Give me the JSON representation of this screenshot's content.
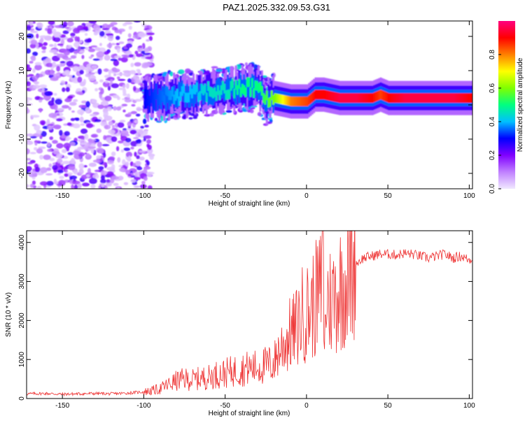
{
  "figure_title": "PAZ1.2025.332.09.53.G31",
  "chart_data": [
    {
      "type": "heatmap",
      "title": "PAZ1.2025.332.09.53.G31",
      "xlabel": "Height of straight line (km)",
      "ylabel": "Frequency (Hz)",
      "xlim": [
        -172,
        102
      ],
      "ylim": [
        -24.5,
        24.5
      ],
      "xticks": [
        -150,
        -100,
        -50,
        0,
        50,
        100
      ],
      "yticks": [
        -20,
        -10,
        0,
        10,
        20
      ],
      "colorbar": {
        "label": "Normalized spectral amplitude",
        "range": [
          0,
          1
        ],
        "ticks": [
          "0.0",
          "0.2",
          "0.4",
          "0.6",
          "0.8"
        ],
        "tick_values": [
          0,
          0.2,
          0.4,
          0.6,
          0.8
        ],
        "colors": [
          "#f0e8ff",
          "#c080ff",
          "#8000ff",
          "#0000ff",
          "#00c0ff",
          "#00ff80",
          "#80ff00",
          "#ffff00",
          "#ff8000",
          "#ff0000",
          "#ff0080"
        ]
      },
      "ridge_frequency": {
        "height_km": [
          -100,
          -90,
          -80,
          -70,
          -60,
          -50,
          -40,
          -30,
          -25,
          -20,
          -10,
          0,
          5,
          10,
          20,
          30,
          40,
          45,
          50,
          60,
          70,
          80,
          90,
          100
        ],
        "frequency_hz": [
          2,
          2,
          3,
          3,
          4,
          4,
          5,
          5,
          1,
          2,
          1,
          1,
          3,
          3,
          2,
          2,
          2,
          3,
          2,
          2,
          2,
          2,
          2,
          2
        ],
        "amplitude": [
          0.3,
          0.35,
          0.4,
          0.4,
          0.45,
          0.45,
          0.5,
          0.5,
          0.55,
          0.6,
          0.8,
          0.85,
          0.9,
          0.9,
          0.95,
          0.95,
          0.9,
          0.85,
          0.9,
          0.95,
          0.95,
          0.95,
          0.95,
          0.9
        ]
      }
    },
    {
      "type": "line",
      "xlabel": "Height of straight line (km)",
      "ylabel": "SNR (10 * v/v)",
      "xlim": [
        -172,
        102
      ],
      "ylim": [
        0,
        4300
      ],
      "xticks": [
        -150,
        -100,
        -50,
        0,
        50,
        100
      ],
      "yticks": [
        0,
        1000,
        2000,
        3000,
        4000
      ],
      "series": [
        {
          "name": "SNR",
          "color": "#ee3333",
          "x": [
            -172,
            -160,
            -150,
            -140,
            -130,
            -120,
            -110,
            -100,
            -95,
            -90,
            -85,
            -80,
            -75,
            -70,
            -65,
            -60,
            -55,
            -50,
            -45,
            -40,
            -35,
            -30,
            -25,
            -20,
            -18,
            -15,
            -12,
            -10,
            -8,
            -5,
            -3,
            0,
            3,
            5,
            8,
            10,
            11,
            12,
            15,
            20,
            25,
            28,
            30,
            35,
            40,
            45,
            50,
            55,
            60,
            65,
            70,
            75,
            80,
            85,
            90,
            95,
            100,
            102
          ],
          "y": [
            120,
            130,
            110,
            120,
            130,
            120,
            140,
            170,
            200,
            250,
            350,
            450,
            500,
            480,
            520,
            550,
            620,
            650,
            700,
            750,
            780,
            800,
            850,
            900,
            1150,
            1350,
            1500,
            1650,
            1700,
            1900,
            2150,
            2200,
            2300,
            2500,
            2700,
            2900,
            1000,
            2600,
            2500,
            2800,
            3100,
            3300,
            3450,
            3600,
            3650,
            3700,
            3700,
            3680,
            3720,
            3700,
            3650,
            3600,
            3650,
            3700,
            3600,
            3650,
            3550,
            3600
          ]
        }
      ]
    }
  ]
}
